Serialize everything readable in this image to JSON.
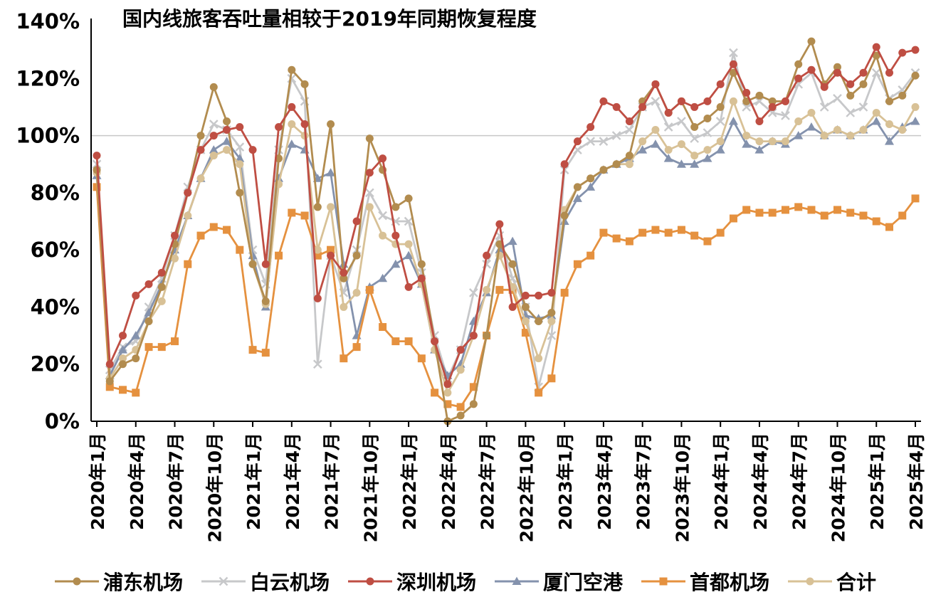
{
  "chart_data": {
    "type": "line",
    "title": "国内线旅客吞吐量相较于2019年同期恢复程度",
    "xlabel": "",
    "ylabel": "",
    "ylim": [
      0,
      140
    ],
    "ytick_step": 20,
    "ytick_suffix": "%",
    "gridline_at": 100,
    "grid": "only-100-percent-line",
    "legend_position": "bottom",
    "xtick_every": 3,
    "categories": [
      "2020年1月",
      "2020年2月",
      "2020年3月",
      "2020年4月",
      "2020年5月",
      "2020年6月",
      "2020年7月",
      "2020年8月",
      "2020年9月",
      "2020年10月",
      "2020年11月",
      "2020年12月",
      "2021年1月",
      "2021年2月",
      "2021年3月",
      "2021年4月",
      "2021年5月",
      "2021年6月",
      "2021年7月",
      "2021年8月",
      "2021年9月",
      "2021年10月",
      "2021年11月",
      "2021年12月",
      "2022年1月",
      "2022年2月",
      "2022年3月",
      "2022年4月",
      "2022年5月",
      "2022年6月",
      "2022年7月",
      "2022年8月",
      "2022年9月",
      "2022年10月",
      "2022年11月",
      "2022年12月",
      "2023年1月",
      "2023年2月",
      "2023年3月",
      "2023年4月",
      "2023年5月",
      "2023年6月",
      "2023年7月",
      "2023年8月",
      "2023年9月",
      "2023年10月",
      "2023年11月",
      "2023年12月",
      "2024年1月",
      "2024年2月",
      "2024年3月",
      "2024年4月",
      "2024年5月",
      "2024年6月",
      "2024年7月",
      "2024年8月",
      "2024年9月",
      "2024年10月",
      "2024年11月",
      "2024年12月",
      "2025年1月",
      "2025年2月",
      "2025年3月",
      "2025年4月"
    ],
    "series": [
      {
        "key": "pudong",
        "name": "浦东机场",
        "color": "#b28c4f",
        "marker": "circle",
        "values": [
          88,
          14,
          20,
          22,
          35,
          47,
          62,
          80,
          100,
          117,
          105,
          80,
          55,
          42,
          92,
          123,
          118,
          75,
          104,
          50,
          58,
          99,
          88,
          75,
          78,
          55,
          28,
          0,
          2,
          6,
          30,
          62,
          55,
          40,
          35,
          38,
          72,
          82,
          85,
          88,
          90,
          93,
          112,
          118,
          108,
          112,
          103,
          106,
          110,
          122,
          112,
          114,
          112,
          112,
          125,
          133,
          118,
          124,
          114,
          118,
          128,
          112,
          114,
          121
        ]
      },
      {
        "key": "baiyun",
        "name": "白云机场",
        "color": "#c7c8ca",
        "marker": "x",
        "values": [
          90,
          18,
          26,
          28,
          40,
          50,
          65,
          82,
          95,
          104,
          102,
          96,
          60,
          48,
          95,
          120,
          112,
          20,
          58,
          45,
          60,
          80,
          72,
          70,
          70,
          52,
          30,
          15,
          25,
          45,
          55,
          65,
          50,
          40,
          12,
          30,
          88,
          95,
          98,
          98,
          100,
          102,
          110,
          112,
          103,
          105,
          99,
          101,
          105,
          129,
          110,
          112,
          108,
          107,
          118,
          122,
          110,
          113,
          108,
          110,
          122,
          113,
          116,
          122
        ]
      },
      {
        "key": "shenzhen",
        "name": "深圳机场",
        "color": "#bf4e43",
        "marker": "circle",
        "values": [
          93,
          20,
          30,
          44,
          48,
          52,
          65,
          80,
          95,
          100,
          102,
          103,
          95,
          55,
          103,
          110,
          104,
          43,
          58,
          52,
          70,
          87,
          92,
          65,
          47,
          50,
          28,
          13,
          25,
          30,
          58,
          69,
          40,
          44,
          44,
          45,
          90,
          98,
          103,
          112,
          110,
          105,
          110,
          118,
          108,
          112,
          110,
          112,
          118,
          125,
          115,
          105,
          110,
          112,
          120,
          123,
          117,
          122,
          118,
          122,
          131,
          122,
          129,
          130
        ]
      },
      {
        "key": "xiamen",
        "name": "厦门空港",
        "color": "#8492ad",
        "marker": "triangle",
        "values": [
          86,
          16,
          25,
          30,
          38,
          48,
          60,
          72,
          85,
          95,
          98,
          92,
          58,
          40,
          85,
          97,
          95,
          85,
          87,
          55,
          30,
          47,
          50,
          55,
          58,
          48,
          25,
          16,
          20,
          35,
          45,
          60,
          63,
          37,
          36,
          37,
          70,
          78,
          82,
          88,
          90,
          92,
          95,
          97,
          92,
          90,
          90,
          92,
          95,
          105,
          97,
          95,
          98,
          97,
          100,
          103,
          100,
          102,
          100,
          102,
          105,
          98,
          103,
          105
        ]
      },
      {
        "key": "capital",
        "name": "首都机场",
        "color": "#e5913f",
        "marker": "square",
        "values": [
          82,
          12,
          11,
          10,
          26,
          26,
          28,
          55,
          65,
          68,
          67,
          60,
          25,
          24,
          58,
          73,
          72,
          58,
          60,
          22,
          26,
          46,
          33,
          28,
          28,
          22,
          10,
          6,
          5,
          12,
          30,
          46,
          46,
          31,
          10,
          15,
          45,
          55,
          58,
          66,
          64,
          63,
          66,
          67,
          66,
          67,
          65,
          63,
          66,
          71,
          74,
          73,
          73,
          74,
          75,
          74,
          72,
          74,
          73,
          72,
          70,
          68,
          72,
          78
        ]
      },
      {
        "key": "total",
        "name": "合计",
        "color": "#d8c196",
        "marker": "circle",
        "values": [
          87,
          15,
          22,
          25,
          35,
          42,
          57,
          72,
          85,
          93,
          95,
          90,
          55,
          41,
          83,
          104,
          100,
          60,
          75,
          40,
          45,
          75,
          65,
          62,
          62,
          48,
          25,
          10,
          18,
          30,
          46,
          58,
          47,
          35,
          22,
          35,
          74,
          82,
          85,
          88,
          90,
          90,
          98,
          102,
          95,
          97,
          93,
          95,
          98,
          112,
          100,
          98,
          98,
          98,
          105,
          108,
          100,
          102,
          100,
          102,
          108,
          104,
          102,
          110
        ]
      }
    ]
  },
  "colors": {
    "axis": "#000000",
    "gridline": "#c8c8c8",
    "title_text": "#262626"
  }
}
